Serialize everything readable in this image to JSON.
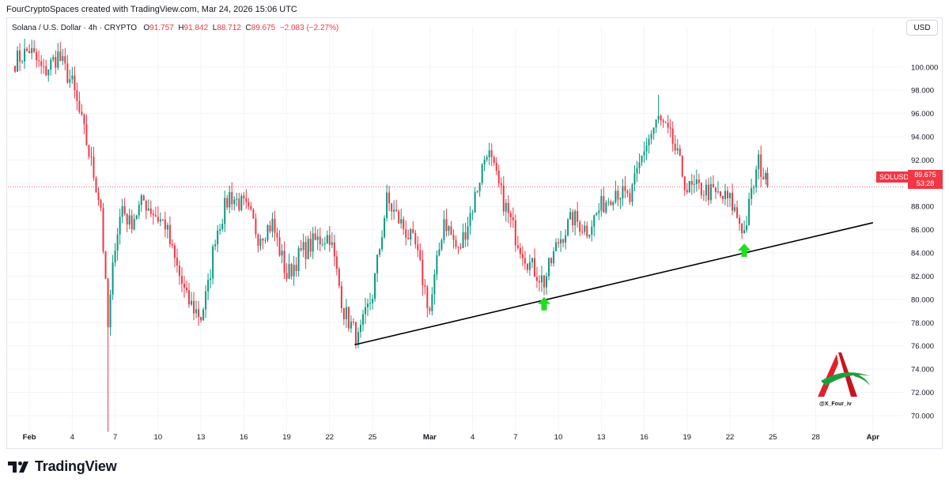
{
  "header": {
    "credit": "FourCryptoSpaces created with TradingView.com, Mar 24, 2026 15:06 UTC",
    "symbol_desc": "Solana / U.S. Dollar · 4h · CRYPTO",
    "open_label": "O",
    "open_value": "91.757",
    "high_label": "H",
    "high_value": "91.842",
    "low_label": "L",
    "low_value": "88.712",
    "close_label": "C",
    "close_value": "89.675",
    "change": "−2.083 (−2.27%)"
  },
  "currency_button": "USD",
  "price_tag": {
    "symbol": "SOLUSD",
    "price": "89.675",
    "countdown": "53:28"
  },
  "footer": {
    "brand": "TradingView"
  },
  "watermark": {
    "handle": "@X_Four_iv"
  },
  "colors": {
    "up": "#089981",
    "down": "#f23645",
    "trendline": "#000000",
    "arrow": "#22dd22",
    "grid": "#f0f3fa"
  },
  "icons": {
    "brand_logo": "tradingview-logo-icon",
    "signal": "green-up-arrow-icon"
  },
  "chart_data": {
    "type": "candlestick",
    "title": "",
    "ylim": [
      68.5,
      102.5
    ],
    "y_ticks": [
      "100.000",
      "98.000",
      "96.000",
      "94.000",
      "92.000",
      "90.000",
      "88.000",
      "86.000",
      "84.000",
      "82.000",
      "80.000",
      "78.000",
      "76.000",
      "74.000",
      "72.000",
      "70.000"
    ],
    "x_ticks": [
      {
        "label": "Feb",
        "date": "2026-02-01"
      },
      {
        "label": "4",
        "date": "2026-02-04"
      },
      {
        "label": "7",
        "date": "2026-02-07"
      },
      {
        "label": "10",
        "date": "2026-02-10"
      },
      {
        "label": "13",
        "date": "2026-02-13"
      },
      {
        "label": "16",
        "date": "2026-02-16"
      },
      {
        "label": "19",
        "date": "2026-02-19"
      },
      {
        "label": "22",
        "date": "2026-02-22"
      },
      {
        "label": "25",
        "date": "2026-02-25"
      },
      {
        "label": "Mar",
        "date": "2026-03-01"
      },
      {
        "label": "4",
        "date": "2026-03-04"
      },
      {
        "label": "7",
        "date": "2026-03-07"
      },
      {
        "label": "10",
        "date": "2026-03-10"
      },
      {
        "label": "13",
        "date": "2026-03-13"
      },
      {
        "label": "16",
        "date": "2026-03-16"
      },
      {
        "label": "19",
        "date": "2026-03-19"
      },
      {
        "label": "22",
        "date": "2026-03-22"
      },
      {
        "label": "25",
        "date": "2026-03-25"
      },
      {
        "label": "28",
        "date": "2026-03-28"
      },
      {
        "label": "Apr",
        "date": "2026-04-01"
      }
    ],
    "close_path": [
      [
        "2026-01-31",
        100.5
      ],
      [
        "2026-02-01",
        101.5
      ],
      [
        "2026-02-02",
        99.5
      ],
      [
        "2026-02-03",
        101.0
      ],
      [
        "2026-02-04",
        98.5
      ],
      [
        "2026-02-05",
        93.5
      ],
      [
        "2026-02-06",
        88.0
      ],
      [
        "2026-02-06T12",
        77.5
      ],
      [
        "2026-02-07",
        85.0
      ],
      [
        "2026-02-07T12",
        88.0
      ],
      [
        "2026-02-08",
        86.5
      ],
      [
        "2026-02-09",
        88.5
      ],
      [
        "2026-02-10",
        87.0
      ],
      [
        "2026-02-10T12",
        86.5
      ],
      [
        "2026-02-11",
        84.0
      ],
      [
        "2026-02-12",
        80.0
      ],
      [
        "2026-02-13",
        78.5
      ],
      [
        "2026-02-13T12",
        81.0
      ],
      [
        "2026-02-14",
        85.5
      ],
      [
        "2026-02-15",
        89.0
      ],
      [
        "2026-02-16",
        88.0
      ],
      [
        "2026-02-16T12",
        87.0
      ],
      [
        "2026-02-17",
        85.5
      ],
      [
        "2026-02-18",
        86.5
      ],
      [
        "2026-02-19",
        82.0
      ],
      [
        "2026-02-20",
        84.0
      ],
      [
        "2026-02-21",
        85.0
      ],
      [
        "2026-02-22",
        85.5
      ],
      [
        "2026-02-23",
        79.0
      ],
      [
        "2026-02-24",
        76.5
      ],
      [
        "2026-02-25",
        80.5
      ],
      [
        "2026-02-26",
        88.5
      ],
      [
        "2026-02-27",
        86.5
      ],
      [
        "2026-02-28",
        84.5
      ],
      [
        "2026-03-01",
        79.0
      ],
      [
        "2026-03-02",
        87.0
      ],
      [
        "2026-03-03",
        84.0
      ],
      [
        "2026-03-04",
        88.0
      ],
      [
        "2026-03-05",
        93.0
      ],
      [
        "2026-03-06",
        89.0
      ],
      [
        "2026-03-07",
        85.5
      ],
      [
        "2026-03-08",
        83.0
      ],
      [
        "2026-03-09",
        81.5
      ],
      [
        "2026-03-10",
        85.0
      ],
      [
        "2026-03-11",
        87.0
      ],
      [
        "2026-03-12",
        86.0
      ],
      [
        "2026-03-13",
        88.0
      ],
      [
        "2026-03-14",
        89.5
      ],
      [
        "2026-03-15",
        88.5
      ],
      [
        "2026-03-16",
        93.0
      ],
      [
        "2026-03-17",
        95.5
      ],
      [
        "2026-03-18",
        93.5
      ],
      [
        "2026-03-19",
        89.5
      ],
      [
        "2026-03-20",
        89.5
      ],
      [
        "2026-03-21",
        89.0
      ],
      [
        "2026-03-22",
        88.5
      ],
      [
        "2026-03-23",
        85.8
      ],
      [
        "2026-03-23T12",
        89.0
      ],
      [
        "2026-03-24",
        91.8
      ],
      [
        "2026-03-24T15",
        89.7
      ]
    ],
    "extremes": {
      "2026-02-06T12": {
        "low": 68.6
      },
      "2026-03-17": {
        "high": 97.6
      },
      "2026-02-24": {
        "low": 75.8
      }
    },
    "trendline": {
      "start": [
        "2026-02-23T18",
        76.1
      ],
      "end": [
        "2026-04-01",
        86.6
      ]
    },
    "annotations": [
      {
        "type": "up-arrow",
        "date": "2026-03-09",
        "price": 79.6
      },
      {
        "type": "up-arrow",
        "date": "2026-03-23",
        "price": 84.2
      }
    ]
  }
}
